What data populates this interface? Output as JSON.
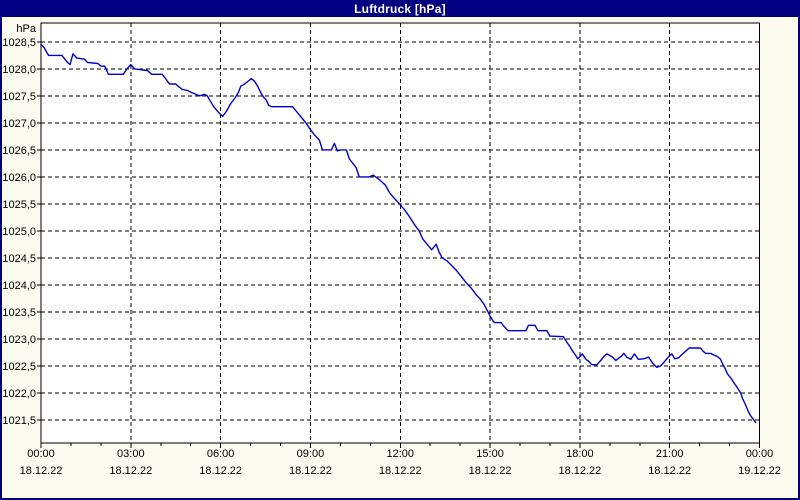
{
  "window": {
    "title": "Luftdruck [hPa]"
  },
  "colors": {
    "titlebar_bg": "#000080",
    "titlebar_text": "#FFFFFF",
    "window_bg": "#FBFBEF",
    "plot_bg": "#FFFFFF",
    "grid": "#000000",
    "axis": "#000000",
    "label": "#000000",
    "line": "#0000CC"
  },
  "chart_data": {
    "type": "line",
    "title": "Luftdruck [hPa]",
    "ylabel": "hPa",
    "xlabel": "",
    "grid": true,
    "legend": "none",
    "xlim_hours": [
      0,
      24
    ],
    "ylim": [
      1021.07,
      1028.85
    ],
    "y_ticks": [
      {
        "value": 1028.5,
        "label": "1028,5"
      },
      {
        "value": 1028.0,
        "label": "1028,0"
      },
      {
        "value": 1027.5,
        "label": "1027,5"
      },
      {
        "value": 1027.0,
        "label": "1027,0"
      },
      {
        "value": 1026.5,
        "label": "1026,5"
      },
      {
        "value": 1026.0,
        "label": "1026,0"
      },
      {
        "value": 1025.5,
        "label": "1025,5"
      },
      {
        "value": 1025.0,
        "label": "1025,0"
      },
      {
        "value": 1024.5,
        "label": "1024,5"
      },
      {
        "value": 1024.0,
        "label": "1024,0"
      },
      {
        "value": 1023.5,
        "label": "1023,5"
      },
      {
        "value": 1023.0,
        "label": "1023,0"
      },
      {
        "value": 1022.5,
        "label": "1022,5"
      },
      {
        "value": 1022.0,
        "label": "1022,0"
      },
      {
        "value": 1021.5,
        "label": "1021,5"
      }
    ],
    "x_ticks": [
      {
        "hour": 0,
        "time": "00:00",
        "date": "18.12.22"
      },
      {
        "hour": 3,
        "time": "03:00",
        "date": "18.12.22"
      },
      {
        "hour": 6,
        "time": "06:00",
        "date": "18.12.22"
      },
      {
        "hour": 9,
        "time": "09:00",
        "date": "18.12.22"
      },
      {
        "hour": 12,
        "time": "12:00",
        "date": "18.12.22"
      },
      {
        "hour": 15,
        "time": "15:00",
        "date": "18.12.22"
      },
      {
        "hour": 18,
        "time": "18:00",
        "date": "18.12.22"
      },
      {
        "hour": 21,
        "time": "21:00",
        "date": "18.12.22"
      },
      {
        "hour": 24,
        "time": "00:00",
        "date": "19.12.22"
      }
    ],
    "minor_x_tick_hours": 1,
    "series": [
      {
        "name": "Luftdruck",
        "unit": "hPa",
        "color": "#0000CC",
        "points": [
          [
            0,
            1028.45
          ],
          [
            0.1,
            1028.4
          ],
          [
            0.25,
            1028.25
          ],
          [
            0.7,
            1028.25
          ],
          [
            0.87,
            1028.13
          ],
          [
            0.97,
            1028.08
          ],
          [
            1.07,
            1028.28
          ],
          [
            1.2,
            1028.2
          ],
          [
            1.45,
            1028.18
          ],
          [
            1.55,
            1028.12
          ],
          [
            1.9,
            1028.1
          ],
          [
            2,
            1028.05
          ],
          [
            2.13,
            1028.05
          ],
          [
            2.25,
            1027.9
          ],
          [
            2.75,
            1027.9
          ],
          [
            2.87,
            1028
          ],
          [
            3,
            1028.08
          ],
          [
            3.13,
            1028
          ],
          [
            3.55,
            1027.97
          ],
          [
            3.7,
            1027.9
          ],
          [
            4.05,
            1027.9
          ],
          [
            4.15,
            1027.83
          ],
          [
            4.25,
            1027.75
          ],
          [
            4.3,
            1027.72
          ],
          [
            4.5,
            1027.72
          ],
          [
            4.6,
            1027.67
          ],
          [
            4.72,
            1027.62
          ],
          [
            4.9,
            1027.6
          ],
          [
            5,
            1027.57
          ],
          [
            5.3,
            1027.5
          ],
          [
            5.45,
            1027.53
          ],
          [
            5.55,
            1027.5
          ],
          [
            5.63,
            1027.43
          ],
          [
            5.77,
            1027.3
          ],
          [
            5.97,
            1027.17
          ],
          [
            6.07,
            1027.12
          ],
          [
            6.2,
            1027.22
          ],
          [
            6.33,
            1027.35
          ],
          [
            6.5,
            1027.48
          ],
          [
            6.6,
            1027.57
          ],
          [
            6.67,
            1027.68
          ],
          [
            6.8,
            1027.72
          ],
          [
            7.03,
            1027.82
          ],
          [
            7.13,
            1027.77
          ],
          [
            7.25,
            1027.67
          ],
          [
            7.33,
            1027.57
          ],
          [
            7.43,
            1027.48
          ],
          [
            7.53,
            1027.42
          ],
          [
            7.6,
            1027.33
          ],
          [
            7.7,
            1027.3
          ],
          [
            8.4,
            1027.3
          ],
          [
            8.55,
            1027.2
          ],
          [
            8.7,
            1027.1
          ],
          [
            8.85,
            1027
          ],
          [
            8.97,
            1026.9
          ],
          [
            9.13,
            1026.78
          ],
          [
            9.3,
            1026.68
          ],
          [
            9.4,
            1026.5
          ],
          [
            9.7,
            1026.5
          ],
          [
            9.8,
            1026.62
          ],
          [
            9.9,
            1026.48
          ],
          [
            10,
            1026.5
          ],
          [
            10.2,
            1026.5
          ],
          [
            10.3,
            1026.33
          ],
          [
            10.42,
            1026.25
          ],
          [
            10.53,
            1026.17
          ],
          [
            10.63,
            1026
          ],
          [
            10.97,
            1026
          ],
          [
            11.1,
            1026.03
          ],
          [
            11.3,
            1025.95
          ],
          [
            11.5,
            1025.85
          ],
          [
            11.65,
            1025.7
          ],
          [
            11.8,
            1025.6
          ],
          [
            11.97,
            1025.5
          ],
          [
            12.13,
            1025.4
          ],
          [
            12.3,
            1025.27
          ],
          [
            12.47,
            1025.12
          ],
          [
            12.63,
            1025
          ],
          [
            12.75,
            1024.85
          ],
          [
            12.9,
            1024.75
          ],
          [
            13.05,
            1024.65
          ],
          [
            13.2,
            1024.75
          ],
          [
            13.3,
            1024.6
          ],
          [
            13.4,
            1024.5
          ],
          [
            13.57,
            1024.44
          ],
          [
            13.73,
            1024.35
          ],
          [
            13.87,
            1024.27
          ],
          [
            14.03,
            1024.16
          ],
          [
            14.2,
            1024.04
          ],
          [
            14.37,
            1023.94
          ],
          [
            14.53,
            1023.82
          ],
          [
            14.65,
            1023.75
          ],
          [
            14.8,
            1023.64
          ],
          [
            14.9,
            1023.53
          ],
          [
            15,
            1023.42
          ],
          [
            15.1,
            1023.33
          ],
          [
            15.15,
            1023.3
          ],
          [
            15.37,
            1023.3
          ],
          [
            15.45,
            1023.24
          ],
          [
            15.6,
            1023.15
          ],
          [
            16.2,
            1023.15
          ],
          [
            16.28,
            1023.25
          ],
          [
            16.5,
            1023.25
          ],
          [
            16.6,
            1023.15
          ],
          [
            16.9,
            1023.15
          ],
          [
            17,
            1023.05
          ],
          [
            17.45,
            1023.04
          ],
          [
            17.55,
            1022.95
          ],
          [
            17.65,
            1022.87
          ],
          [
            17.75,
            1022.78
          ],
          [
            17.85,
            1022.7
          ],
          [
            17.93,
            1022.63
          ],
          [
            18,
            1022.67
          ],
          [
            18.08,
            1022.72
          ],
          [
            18.2,
            1022.62
          ],
          [
            18.3,
            1022.58
          ],
          [
            18.4,
            1022.52
          ],
          [
            18.57,
            1022.52
          ],
          [
            18.7,
            1022.6
          ],
          [
            18.8,
            1022.67
          ],
          [
            18.9,
            1022.72
          ],
          [
            19.07,
            1022.67
          ],
          [
            19.2,
            1022.6
          ],
          [
            19.37,
            1022.67
          ],
          [
            19.47,
            1022.73
          ],
          [
            19.57,
            1022.66
          ],
          [
            19.7,
            1022.62
          ],
          [
            19.82,
            1022.72
          ],
          [
            19.95,
            1022.62
          ],
          [
            20.13,
            1022.63
          ],
          [
            20.3,
            1022.66
          ],
          [
            20.43,
            1022.55
          ],
          [
            20.57,
            1022.47
          ],
          [
            20.7,
            1022.5
          ],
          [
            20.83,
            1022.58
          ],
          [
            20.97,
            1022.67
          ],
          [
            21.07,
            1022.72
          ],
          [
            21.17,
            1022.63
          ],
          [
            21.3,
            1022.65
          ],
          [
            21.43,
            1022.72
          ],
          [
            21.55,
            1022.78
          ],
          [
            21.65,
            1022.83
          ],
          [
            22.03,
            1022.83
          ],
          [
            22.1,
            1022.78
          ],
          [
            22.2,
            1022.73
          ],
          [
            22.37,
            1022.73
          ],
          [
            22.47,
            1022.7
          ],
          [
            22.6,
            1022.67
          ],
          [
            22.7,
            1022.62
          ],
          [
            22.77,
            1022.53
          ],
          [
            22.85,
            1022.45
          ],
          [
            22.93,
            1022.35
          ],
          [
            23,
            1022.3
          ],
          [
            23.07,
            1022.25
          ],
          [
            23.15,
            1022.18
          ],
          [
            23.23,
            1022.12
          ],
          [
            23.3,
            1022.06
          ],
          [
            23.37,
            1022
          ],
          [
            23.43,
            1021.9
          ],
          [
            23.5,
            1021.82
          ],
          [
            23.57,
            1021.73
          ],
          [
            23.63,
            1021.65
          ],
          [
            23.7,
            1021.58
          ],
          [
            23.78,
            1021.52
          ],
          [
            23.87,
            1021.45
          ]
        ]
      }
    ]
  }
}
